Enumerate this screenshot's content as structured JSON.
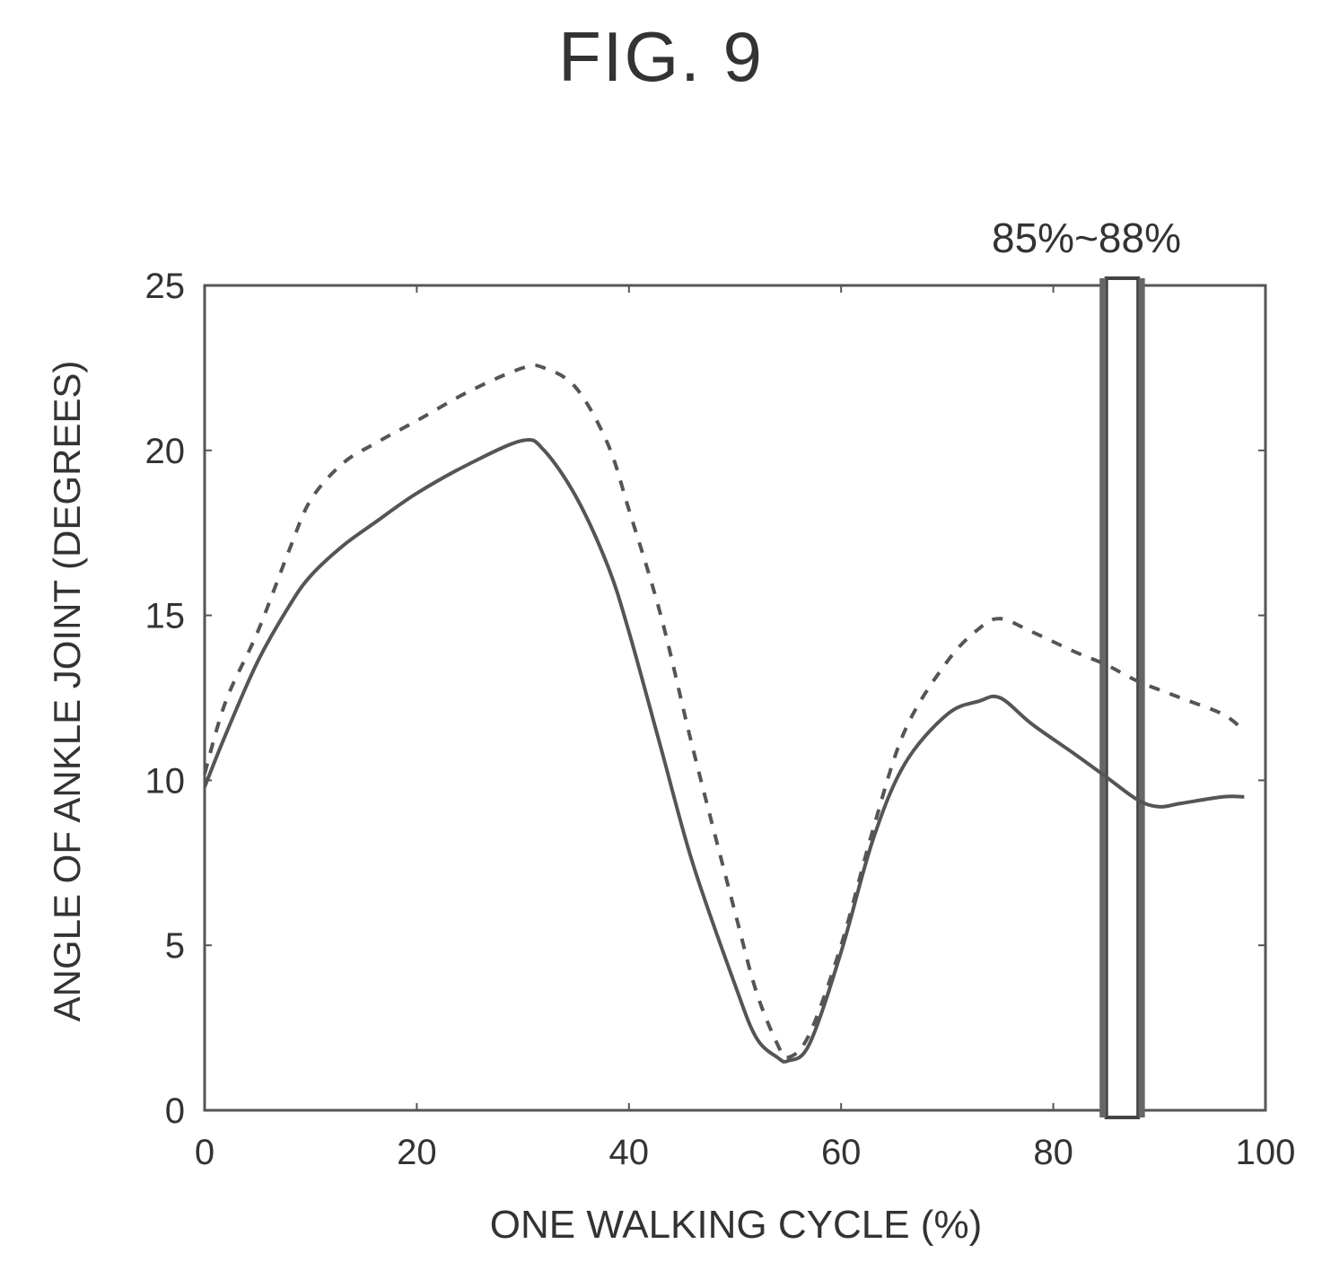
{
  "figure": {
    "title": "FIG. 9",
    "range_label": "85%~88%"
  },
  "chart_data": {
    "type": "line",
    "xlabel": "ONE WALKING CYCLE (%)",
    "ylabel": "ANGLE OF ANKLE JOINT (DEGREES)",
    "xlim": [
      0,
      100
    ],
    "ylim": [
      0,
      25
    ],
    "xticks": [
      0,
      20,
      40,
      60,
      80,
      100
    ],
    "yticks": [
      0,
      5,
      10,
      15,
      20,
      25
    ],
    "grid": false,
    "highlight_band": {
      "from": 85,
      "to": 88,
      "label": "85%~88%"
    },
    "series": [
      {
        "style": "dashed",
        "x": [
          0,
          2,
          5,
          8,
          10,
          13,
          16,
          20,
          25,
          30,
          32,
          35,
          38,
          40,
          43,
          46,
          50,
          52,
          54,
          55,
          57,
          60,
          63,
          66,
          70,
          73,
          75,
          78,
          82,
          85,
          88,
          92,
          96,
          98
        ],
        "y": [
          10.2,
          12.4,
          14.5,
          17.0,
          18.5,
          19.6,
          20.2,
          20.9,
          21.8,
          22.5,
          22.5,
          21.9,
          20.2,
          18.2,
          15.0,
          11.0,
          6.0,
          3.6,
          2.0,
          1.6,
          2.3,
          5.0,
          8.5,
          11.5,
          13.6,
          14.6,
          14.9,
          14.5,
          13.9,
          13.5,
          13.0,
          12.5,
          12.0,
          11.5
        ]
      },
      {
        "style": "solid",
        "x": [
          0,
          2,
          5,
          8,
          10,
          13,
          16,
          20,
          25,
          30,
          32,
          35,
          38,
          40,
          43,
          46,
          50,
          52,
          54,
          55,
          57,
          60,
          63,
          66,
          70,
          73,
          75,
          78,
          82,
          85,
          88,
          90,
          92,
          96,
          98
        ],
        "y": [
          9.8,
          11.4,
          13.6,
          15.3,
          16.2,
          17.1,
          17.8,
          18.7,
          19.6,
          20.3,
          20.0,
          18.6,
          16.5,
          14.5,
          11.0,
          7.5,
          3.8,
          2.2,
          1.6,
          1.5,
          2.0,
          4.8,
          8.2,
          10.5,
          12.0,
          12.4,
          12.5,
          11.7,
          10.8,
          10.1,
          9.4,
          9.2,
          9.3,
          9.5,
          9.5
        ]
      }
    ]
  }
}
